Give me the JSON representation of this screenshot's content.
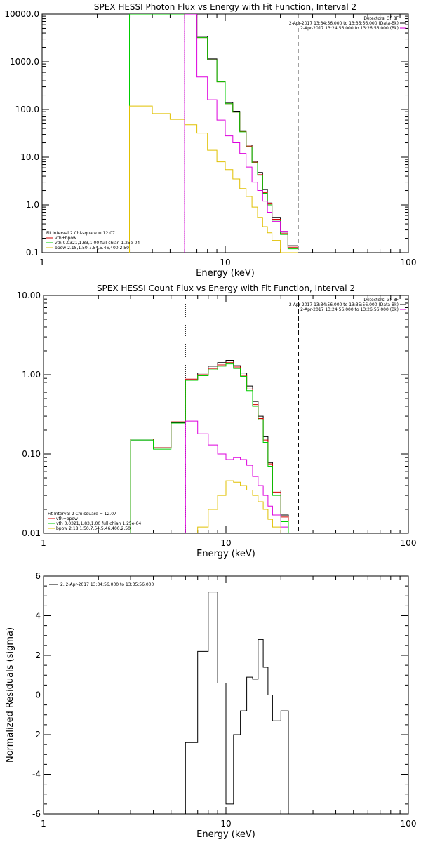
{
  "colors": {
    "data": "#000000",
    "total": "#d40000",
    "vth": "#00cc00",
    "bpow": "#e0c000",
    "vth_bpow": "#dd00dd"
  },
  "chart_data": [
    {
      "type": "line",
      "scale": "log-log",
      "title": "SPEX HESSI Photon Flux vs Energy with Fit Function, Interval 2",
      "xlabel": "Energy (keV)",
      "ylabel": "",
      "xlim": [
        1,
        100
      ],
      "ylim": [
        0.1,
        10000
      ],
      "xticks": [
        "1",
        "10",
        "100"
      ],
      "yticks": [
        "0.1",
        "1.0",
        "10.0",
        "100.0",
        "1000.0",
        "10000.0"
      ],
      "yticks_values": [
        0.1,
        1,
        10,
        100,
        1000,
        10000
      ],
      "vlines": [
        {
          "x": 6.0,
          "style": "dotted"
        },
        {
          "x": 25.0,
          "style": "dashed"
        }
      ],
      "legend_right": [
        "Detectors: 3F 8F",
        "2-Apr-2017 13:34:56.000 to 13:35:56.000 (Data-Bk)",
        "2-Apr-2017 13:24:56.000 to 13:26:56.000 (Bk)"
      ],
      "legend_left": [
        "Fit Interval  2   Chi-square = 12.07",
        "vth+bpow",
        "vth 0.0321,1.83,1.00  full chian 1.25e-04",
        "bpow 2.18,1.50,7.54,5.46,400,2.50"
      ],
      "edges": [
        3.0,
        4.0,
        5.0,
        6.0,
        7.0,
        8.0,
        9.0,
        10.0,
        11.0,
        12.0,
        13.0,
        14.0,
        15.0,
        16.0,
        17.0,
        18.0,
        20.0,
        22.0,
        25.0
      ],
      "series": [
        {
          "name": "data",
          "color": "#000000",
          "values": [
            10000,
            10000,
            10000,
            10000,
            3400,
            1150,
            390,
            140,
            92,
            36,
            18,
            8.2,
            4.8,
            2.1,
            1.1,
            0.55,
            0.27,
            0.14
          ]
        },
        {
          "name": "vth+bpow",
          "color": "#d40000",
          "values": [
            10000,
            10000,
            10000,
            10000,
            3200,
            1100,
            380,
            132,
            88,
            35,
            17,
            7.8,
            4.3,
            1.8,
            1.05,
            0.5,
            0.25,
            0.13
          ]
        },
        {
          "name": "vth",
          "color": "#00cc00",
          "values": [
            10000,
            10000,
            10000,
            10000,
            3200,
            1100,
            380,
            132,
            88,
            34,
            16.5,
            7.6,
            4.2,
            1.75,
            1.0,
            0.48,
            0.24,
            0.12
          ]
        },
        {
          "name": "bpow",
          "color": "#e0c000",
          "values": [
            118,
            82,
            62,
            48,
            32,
            14,
            8.0,
            5.5,
            3.5,
            2.2,
            1.5,
            0.9,
            0.55,
            0.35,
            0.26,
            0.18,
            0.1,
            0.1
          ]
        },
        {
          "name": "vth-bpow",
          "color": "#dd00dd",
          "values": [
            null,
            null,
            null,
            10000,
            480,
            160,
            60,
            28,
            20,
            12,
            6.2,
            3.0,
            2.0,
            1.2,
            0.7,
            0.45,
            0.28,
            null
          ]
        }
      ]
    },
    {
      "type": "line",
      "scale": "log-log",
      "title": "SPEX HESSI Count Flux vs Energy with Fit Function, Interval 2",
      "xlabel": "Energy (keV)",
      "ylabel": "",
      "xlim": [
        1,
        100
      ],
      "ylim": [
        0.01,
        10
      ],
      "xticks": [
        "1",
        "10",
        "100"
      ],
      "yticks": [
        "0.01",
        "0.10",
        "1.00",
        "10.00"
      ],
      "yticks_values": [
        0.01,
        0.1,
        1,
        10
      ],
      "vlines": [
        {
          "x": 6.0,
          "style": "dotted"
        },
        {
          "x": 25.0,
          "style": "dashed"
        }
      ],
      "legend_right": [
        "Detectors: 3F 8F",
        "2-Apr-2017 13:34:56.000 to 13:35:56.000 (Data-Bk)",
        "2-Apr-2017 13:24:56.000 to 13:26:56.000 (Bk)"
      ],
      "legend_left": [
        "Fit Interval  2   Chi-square = 12.07",
        "vth+bpow",
        "vth 0.0321,1.83,1.00  full chian 1.25e-04",
        "bpow 2.18,1.50,7.54,5.46,400,2.50"
      ],
      "edges": [
        3.0,
        4.0,
        5.0,
        6.0,
        7.0,
        8.0,
        9.0,
        10.0,
        11.0,
        12.0,
        13.0,
        14.0,
        15.0,
        16.0,
        17.0,
        18.0,
        20.0,
        22.0,
        25.0
      ],
      "series": [
        {
          "name": "data",
          "color": "#000000",
          "values": [
            0.15,
            0.12,
            0.25,
            0.86,
            1.05,
            1.28,
            1.42,
            1.52,
            1.3,
            1.05,
            0.72,
            0.46,
            0.3,
            0.165,
            0.078,
            0.035,
            0.017,
            0.01
          ]
        },
        {
          "name": "vth+bpow",
          "color": "#d40000",
          "values": [
            0.155,
            0.12,
            0.255,
            0.88,
            1.0,
            1.2,
            1.33,
            1.42,
            1.25,
            0.98,
            0.66,
            0.42,
            0.28,
            0.15,
            0.075,
            0.033,
            0.016,
            0.01
          ]
        },
        {
          "name": "vth",
          "color": "#00cc00",
          "values": [
            0.15,
            0.115,
            0.245,
            0.85,
            0.97,
            1.15,
            1.28,
            1.37,
            1.2,
            0.95,
            0.63,
            0.4,
            0.27,
            0.14,
            0.07,
            0.03,
            0.014,
            0.01
          ]
        },
        {
          "name": "bpow",
          "color": "#e0c000",
          "values": [
            null,
            null,
            null,
            null,
            0.012,
            0.02,
            0.03,
            0.046,
            0.044,
            0.04,
            0.035,
            0.03,
            0.025,
            0.02,
            0.015,
            0.012,
            0.01,
            null
          ]
        },
        {
          "name": "vth-bpow",
          "color": "#dd00dd",
          "values": [
            null,
            null,
            null,
            0.26,
            0.18,
            0.13,
            0.1,
            0.085,
            0.09,
            0.085,
            0.072,
            0.052,
            0.04,
            0.03,
            0.022,
            0.017,
            0.012,
            null
          ]
        }
      ]
    },
    {
      "type": "line",
      "scale": "log-x",
      "title": "",
      "xlabel": "Energy (keV)",
      "ylabel": "Normalized Residuals (sigma)",
      "xlim": [
        1,
        100
      ],
      "ylim": [
        -6,
        6
      ],
      "xticks": [
        "1",
        "10",
        "100"
      ],
      "yticks": [
        "-6",
        "-4",
        "-2",
        "0",
        "2",
        "4",
        "6"
      ],
      "yticks_values": [
        -6,
        -4,
        -2,
        0,
        2,
        4,
        6
      ],
      "legend": [
        "2. 2-Apr-2017 13:34:56.000 to 13:35:56.000"
      ],
      "edges": [
        6.0,
        7.0,
        8.0,
        9.0,
        10.0,
        11.0,
        12.0,
        13.0,
        14.0,
        15.0,
        16.0,
        17.0,
        18.0,
        20.0,
        22.0,
        25.0
      ],
      "series": [
        {
          "name": "residuals",
          "color": "#000000",
          "values": [
            -2.4,
            2.2,
            5.2,
            0.6,
            -5.5,
            -2.0,
            -0.8,
            0.9,
            0.8,
            2.8,
            1.4,
            0.0,
            -1.3,
            -0.8,
            -6.0
          ]
        }
      ]
    }
  ]
}
